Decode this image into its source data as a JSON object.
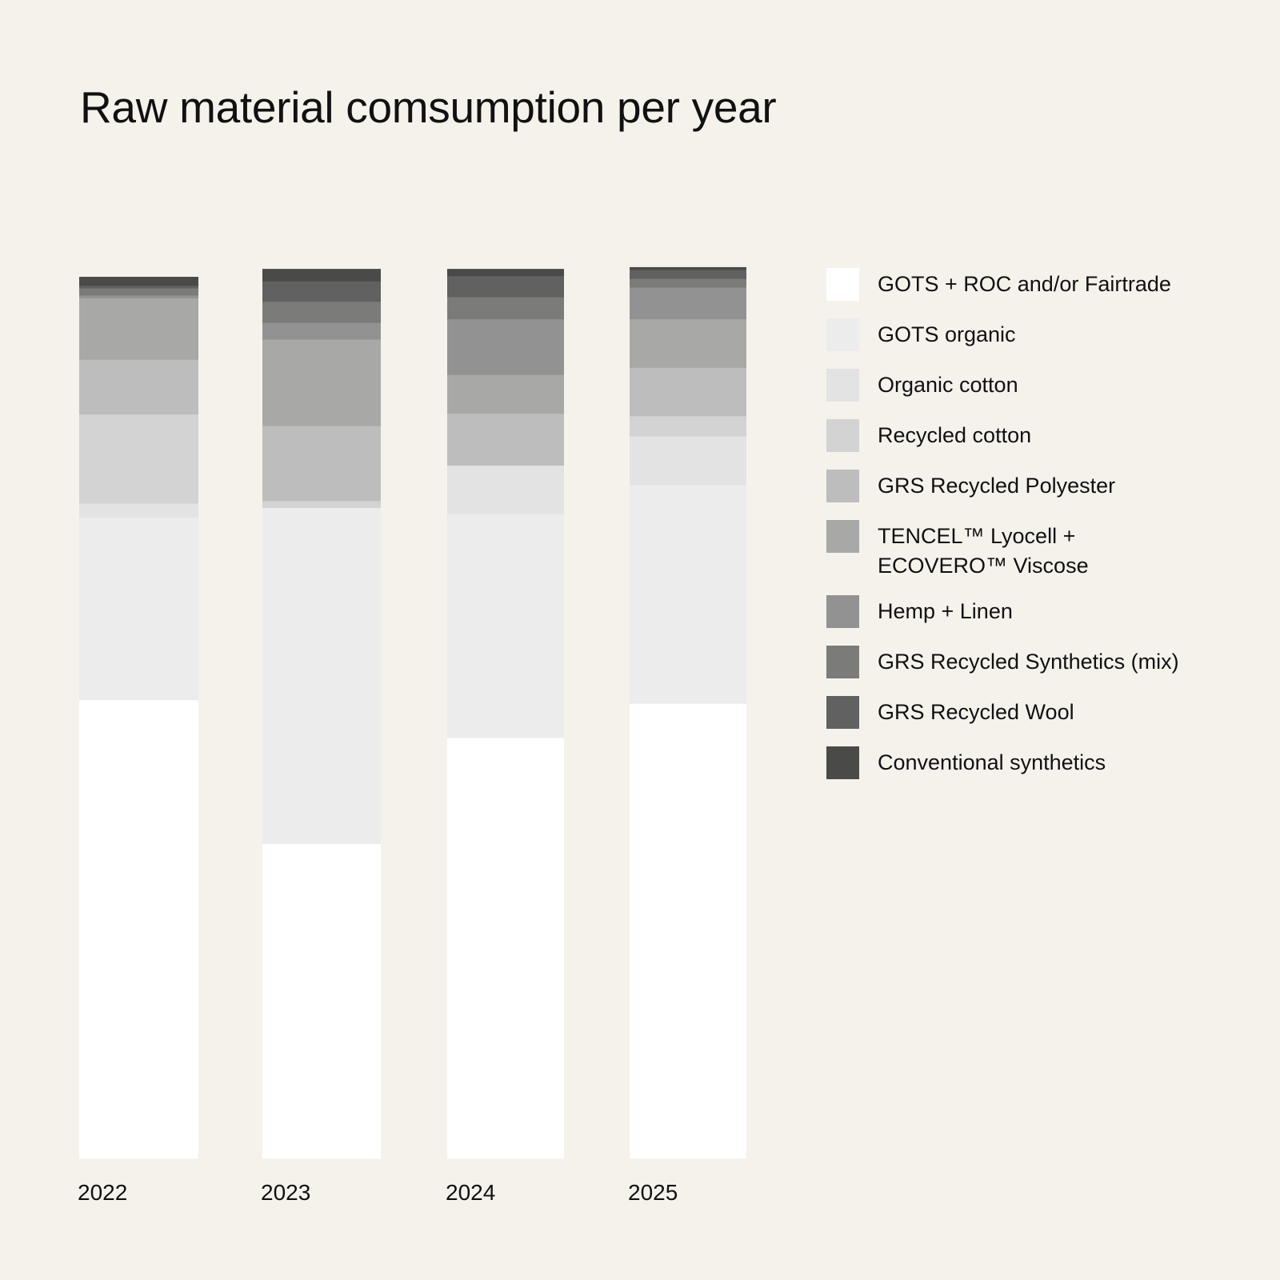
{
  "chart_data": {
    "type": "bar",
    "stacked": true,
    "title": "Raw material comsumption per year",
    "xlabel": "",
    "ylabel": "",
    "unit": "percent (estimated, no value axis shown)",
    "ylim": [
      0,
      100
    ],
    "grid": false,
    "legend_position": "right",
    "categories": [
      "2022",
      "2023",
      "2024",
      "2025"
    ],
    "series": [
      {
        "name": "GOTS + ROC and/or Fairtrade",
        "color": "#ffffff",
        "values": [
          52.0,
          35.7,
          47.7,
          51.6
        ]
      },
      {
        "name": "GOTS organic",
        "color": "#ececec",
        "values": [
          20.7,
          38.1,
          25.4,
          24.8
        ]
      },
      {
        "name": "Organic cotton",
        "color": "#e3e3e3",
        "values": [
          1.6,
          0,
          5.5,
          5.5
        ]
      },
      {
        "name": "Recycled cotton",
        "color": "#d3d3d3",
        "values": [
          10.1,
          0.8,
          0,
          2.3
        ]
      },
      {
        "name": "GRS Recycled Polyester",
        "color": "#bdbdbd",
        "values": [
          6.2,
          8.5,
          5.9,
          5.5
        ]
      },
      {
        "name": "TENCEL™ Lyocell +\nECOVERO™ Viscose",
        "color": "#a8a8a7",
        "values": [
          7.0,
          9.8,
          4.4,
          5.5
        ]
      },
      {
        "name": "Hemp + Linen",
        "color": "#929292",
        "values": [
          0.3,
          1.9,
          6.3,
          3.6
        ]
      },
      {
        "name": "GRS Recycled Synthetics (mix)",
        "color": "#7b7b7a",
        "values": [
          0.8,
          2.4,
          2.5,
          1.0
        ]
      },
      {
        "name": "GRS Recycled Wool",
        "color": "#616161",
        "values": [
          0.3,
          2.3,
          2.4,
          1.0
        ]
      },
      {
        "name": "Conventional synthetics",
        "color": "#4a4a48",
        "values": [
          1.0,
          1.4,
          0.8,
          0.3
        ]
      }
    ]
  },
  "colors": {
    "background": "#f5f2ec",
    "text": "#111111"
  }
}
